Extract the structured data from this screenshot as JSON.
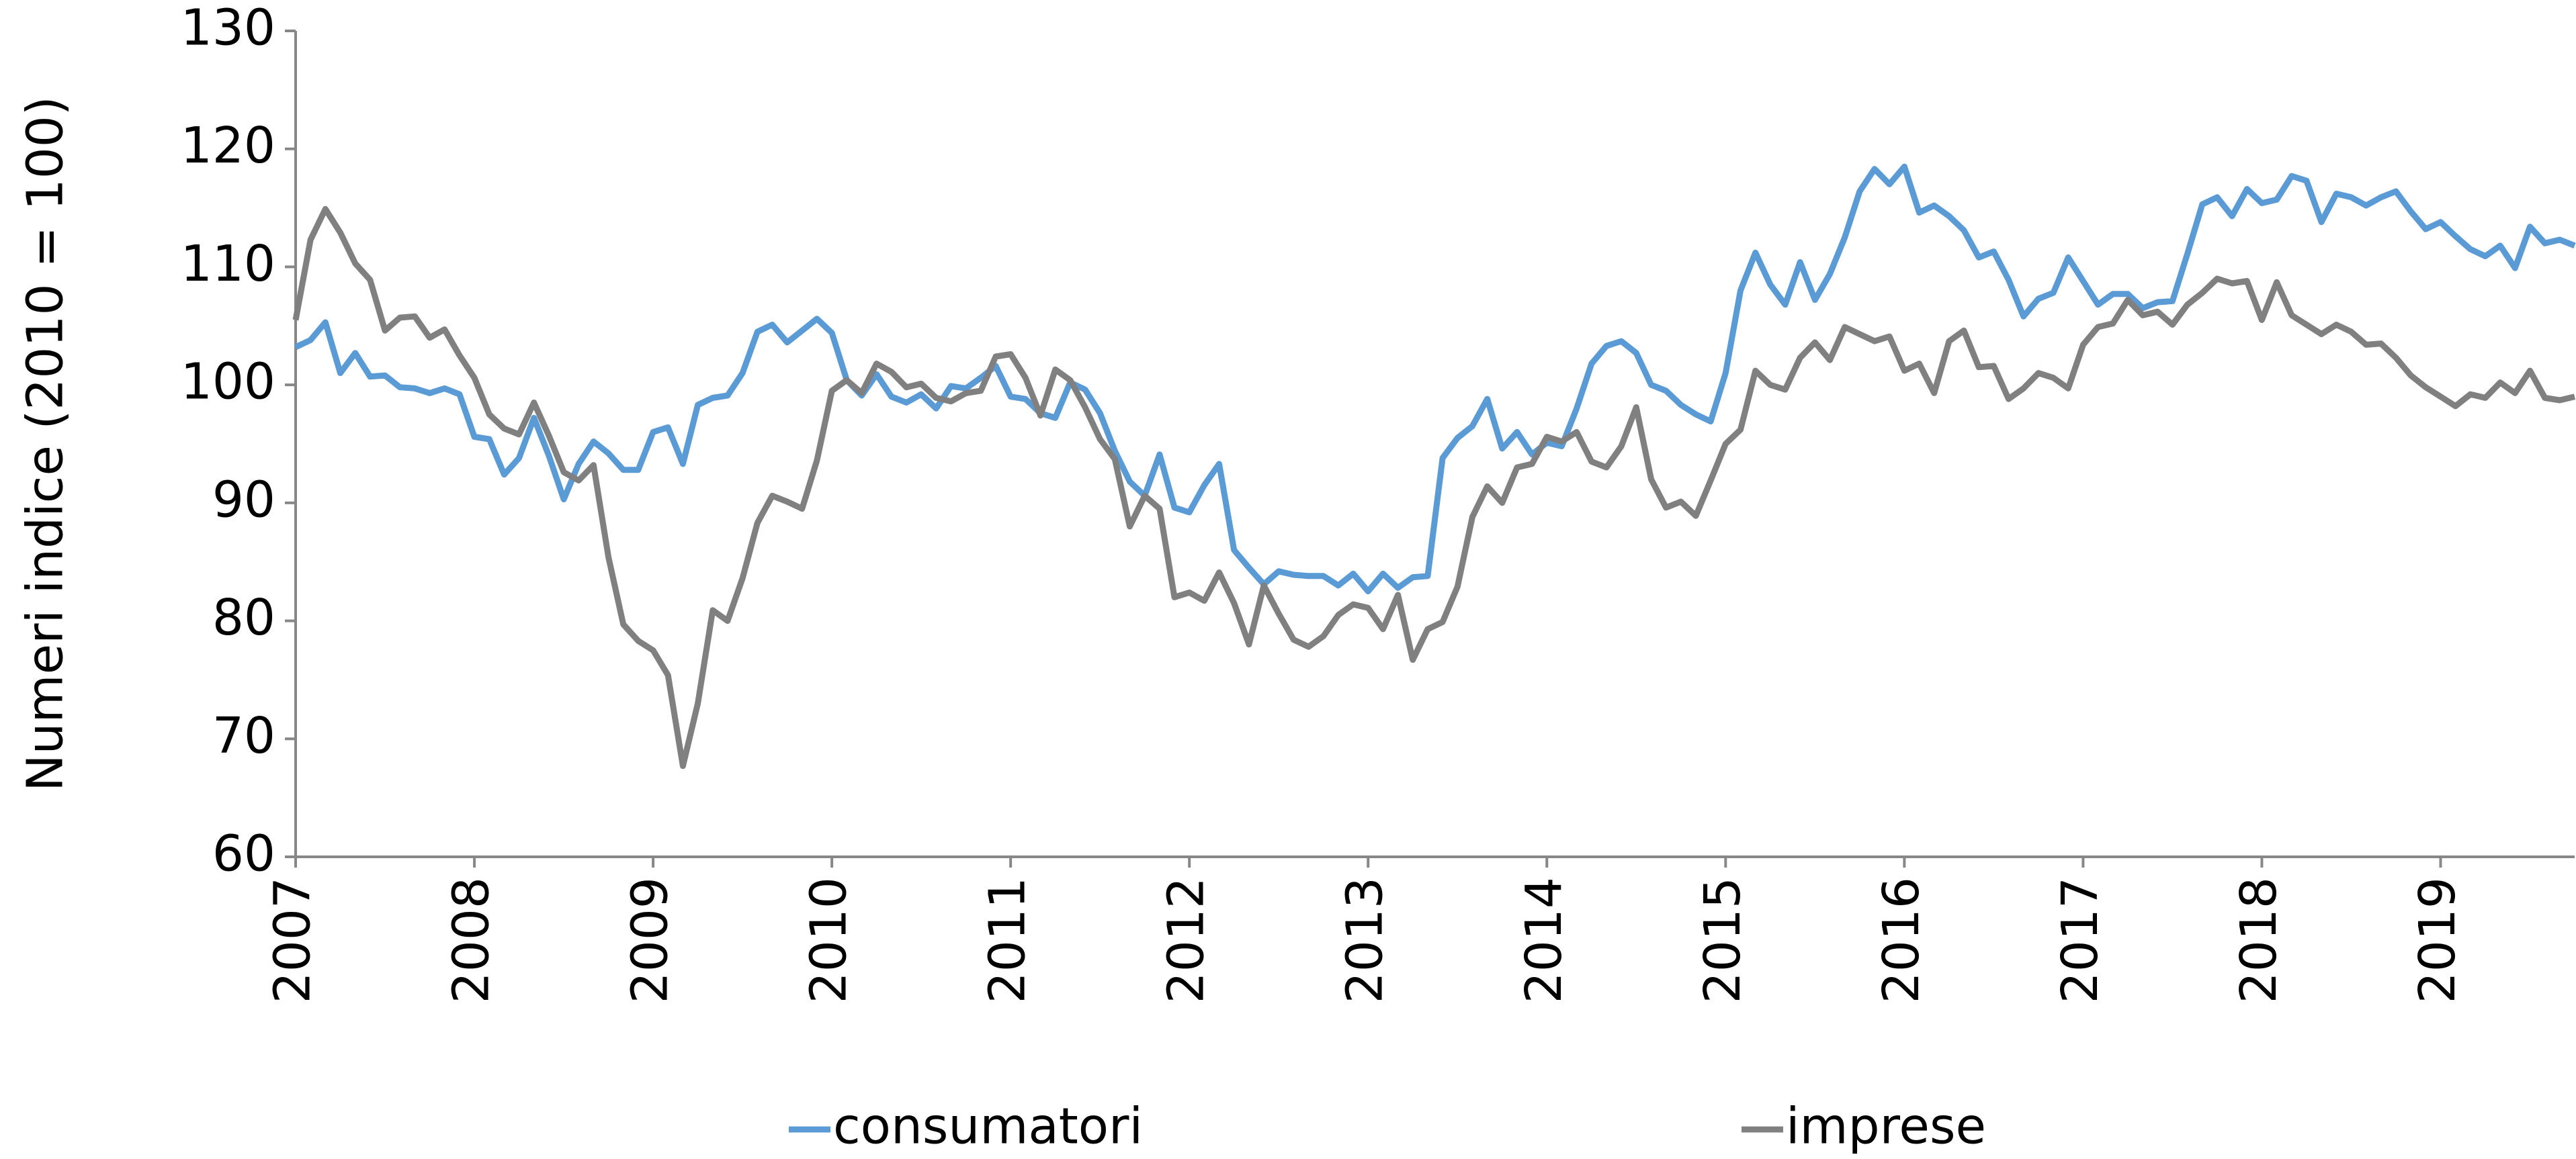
{
  "chart_data": {
    "type": "line",
    "y_label": "Numeri indice (2010 = 100)",
    "categories": [
      "2007",
      null,
      null,
      null,
      null,
      null,
      null,
      null,
      null,
      null,
      null,
      null,
      "2008",
      null,
      null,
      null,
      null,
      null,
      null,
      null,
      null,
      null,
      null,
      null,
      "2009",
      null,
      null,
      null,
      null,
      null,
      null,
      null,
      null,
      null,
      null,
      null,
      "2010",
      null,
      null,
      null,
      null,
      null,
      null,
      null,
      null,
      null,
      null,
      null,
      "2011",
      null,
      null,
      null,
      null,
      null,
      null,
      null,
      null,
      null,
      null,
      null,
      "2012",
      null,
      null,
      null,
      null,
      null,
      null,
      null,
      null,
      null,
      null,
      null,
      "2013",
      null,
      null,
      null,
      null,
      null,
      null,
      null,
      null,
      null,
      null,
      null,
      "2014",
      null,
      null,
      null,
      null,
      null,
      null,
      null,
      null,
      null,
      null,
      null,
      "2015",
      null,
      null,
      null,
      null,
      null,
      null,
      null,
      null,
      null,
      null,
      null,
      "2016",
      null,
      null,
      null,
      null,
      null,
      null,
      null,
      null,
      null,
      null,
      null,
      "2017",
      null,
      null,
      null,
      null,
      null,
      null,
      null,
      null,
      null,
      null,
      null,
      "2018",
      null,
      null,
      null,
      null,
      null,
      null,
      null,
      null,
      null,
      null,
      null,
      "2019",
      null,
      null,
      null,
      null,
      null,
      null,
      null,
      null,
      null
    ],
    "series": [
      {
        "name": "consumatori",
        "color": "#5b9bd5",
        "values": [
          103.2,
          103.8,
          105.3,
          101,
          102.7,
          100.7,
          100.8,
          99.8,
          99.7,
          99.3,
          99.7,
          99.2,
          95.6,
          95.4,
          92.4,
          93.8,
          97.2,
          94,
          90.3,
          93.3,
          95.2,
          94.2,
          92.8,
          92.8,
          96,
          96.4,
          93.3,
          98.3,
          98.9,
          99.1,
          101,
          104.5,
          105.1,
          103.6,
          104.6,
          105.6,
          104.4,
          100.4,
          99.1,
          100.9,
          99,
          98.5,
          99.2,
          98,
          99.9,
          99.7,
          100.6,
          101.6,
          99,
          98.8,
          97.6,
          97.2,
          100.2,
          99.6,
          97.6,
          94.4,
          91.8,
          90.6,
          94.1,
          89.6,
          89.2,
          91.5,
          93.3,
          86,
          84.5,
          83.1,
          84.2,
          83.9,
          83.8,
          83.8,
          83,
          84,
          82.5,
          84,
          82.8,
          83.7,
          83.8,
          93.8,
          95.5,
          96.5,
          98.8,
          94.6,
          96,
          94.1,
          95.1,
          94.8,
          98,
          101.8,
          103.3,
          103.7,
          102.7,
          100,
          99.5,
          98.3,
          97.5,
          96.9,
          101,
          108,
          111.2,
          108.5,
          106.8,
          110.4,
          107.2,
          109.4,
          112.5,
          116.4,
          118.3,
          117,
          118.5,
          114.6,
          115.2,
          114.3,
          113.1,
          110.8,
          111.3,
          108.9,
          105.8,
          107.3,
          107.8,
          110.8,
          108.8,
          106.8,
          107.7,
          107.7,
          106.5,
          107,
          107.1,
          111.1,
          115.3,
          115.9,
          114.3,
          116.6,
          115.4,
          115.7,
          117.7,
          117.3,
          113.8,
          116.2,
          115.9,
          115.2,
          115.9,
          116.4,
          114.7,
          113.2,
          113.8,
          112.6,
          111.5,
          110.9,
          111.8,
          109.9,
          113.4,
          112,
          112.3,
          111.8
        ]
      },
      {
        "name": "imprese",
        "color": "#808080",
        "values": [
          105.5,
          112.3,
          114.9,
          112.9,
          110.3,
          108.9,
          104.6,
          105.7,
          105.8,
          104,
          104.7,
          102.5,
          100.6,
          97.5,
          96.3,
          95.8,
          98.5,
          95.7,
          92.6,
          91.9,
          93.2,
          85.4,
          79.7,
          78.3,
          77.5,
          75.4,
          67.7,
          73,
          80.9,
          80,
          83.6,
          88.3,
          90.6,
          90.1,
          89.5,
          93.6,
          99.5,
          100.4,
          99.3,
          101.8,
          101.1,
          99.8,
          100.1,
          98.9,
          98.6,
          99.3,
          99.5,
          102.4,
          102.6,
          100.6,
          97.4,
          101.3,
          100.4,
          98.1,
          95.4,
          93.7,
          88,
          90.6,
          89.5,
          82,
          82.4,
          81.7,
          84.1,
          81.5,
          78,
          83,
          80.6,
          78.4,
          77.8,
          78.7,
          80.5,
          81.4,
          81.1,
          79.3,
          82.2,
          76.7,
          79.3,
          79.9,
          82.9,
          88.8,
          91.4,
          90,
          93,
          93.3,
          95.6,
          95.2,
          96,
          93.5,
          93,
          94.8,
          98.1,
          92,
          89.6,
          90.1,
          88.9,
          91.9,
          95,
          96.2,
          101.2,
          100,
          99.6,
          102.3,
          103.6,
          102.1,
          104.9,
          104.3,
          103.7,
          104.1,
          101.2,
          101.8,
          99.3,
          103.7,
          104.6,
          101.5,
          101.6,
          98.8,
          99.7,
          101,
          100.6,
          99.7,
          103.4,
          104.9,
          105.2,
          107.2,
          105.9,
          106.2,
          105.1,
          106.8,
          107.8,
          109,
          108.6,
          108.8,
          105.5,
          108.7,
          105.9,
          105.1,
          104.3,
          105.1,
          104.5,
          103.4,
          103.5,
          102.3,
          100.8,
          99.8,
          99,
          98.2,
          99.2,
          98.9,
          100.2,
          99.3,
          101.2,
          98.9,
          98.7,
          99
        ]
      }
    ],
    "ylim": [
      60,
      130
    ],
    "yticks": [
      60,
      70,
      80,
      90,
      100,
      110,
      120,
      130
    ],
    "grid": false,
    "legend": "bottom"
  }
}
